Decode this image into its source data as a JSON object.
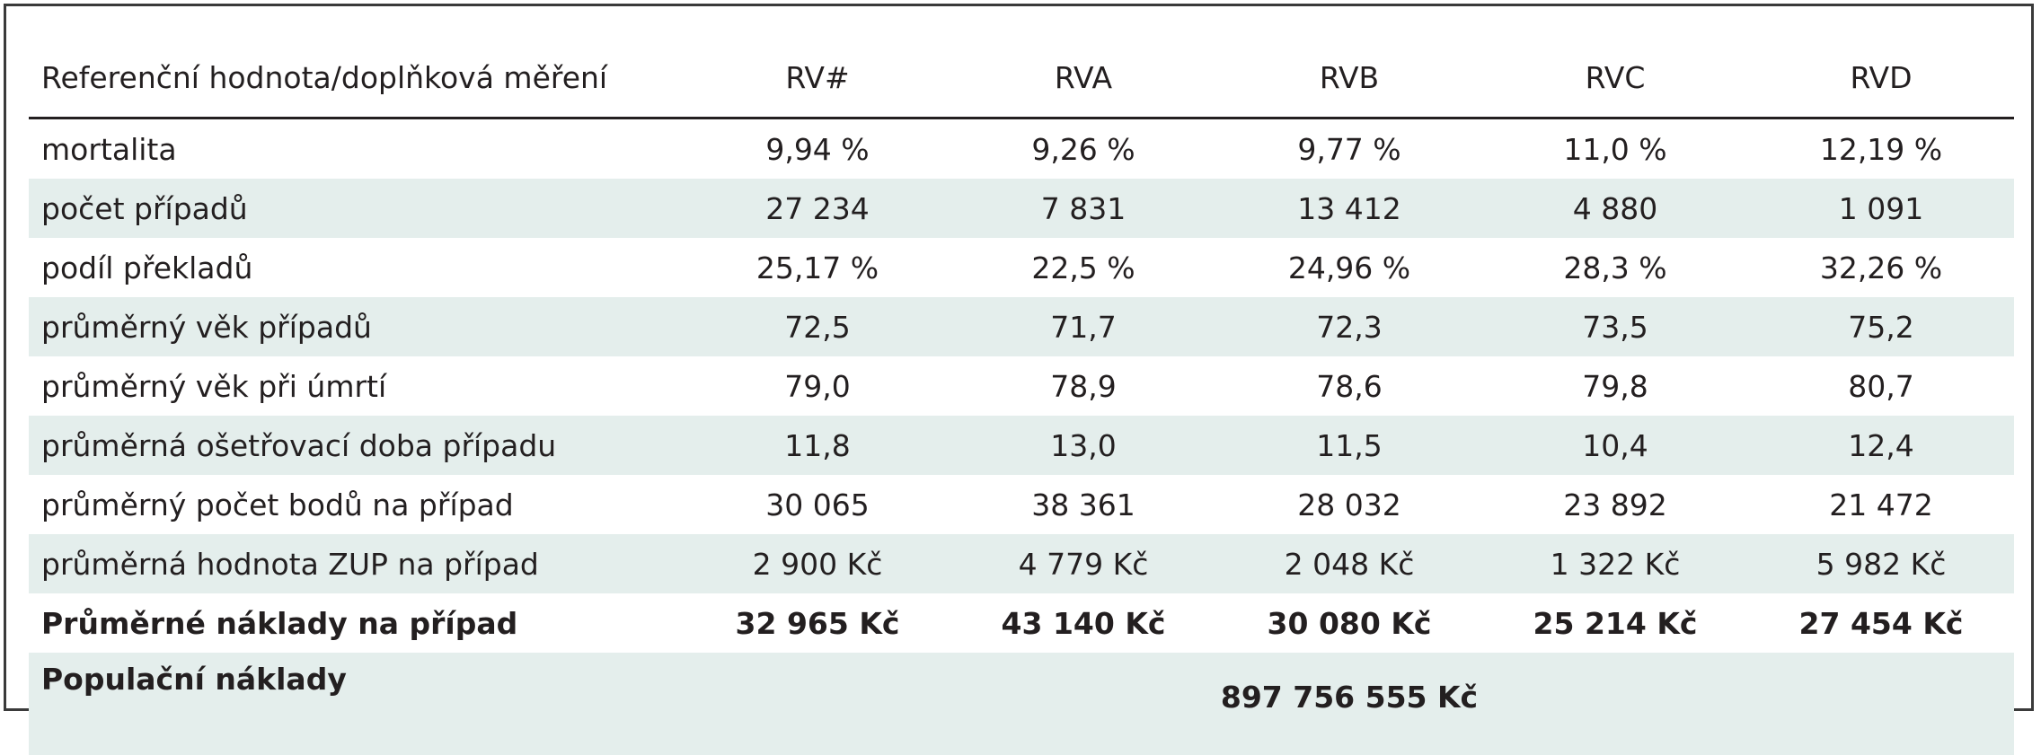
{
  "table": {
    "headers": [
      "Referenční hodnota/doplňková měření",
      "RV#",
      "RVA",
      "RVB",
      "RVC",
      "RVD"
    ],
    "rows": [
      {
        "label": "mortalita",
        "values": [
          "9,94 %",
          "9,26 %",
          "9,77 %",
          "11,0 %",
          "12,19 %"
        ]
      },
      {
        "label": "počet případů",
        "values": [
          "27 234",
          "7 831",
          "13 412",
          "4 880",
          "1 091"
        ]
      },
      {
        "label": "podíl překladů",
        "values": [
          "25,17 %",
          "22,5 %",
          "24,96 %",
          "28,3 %",
          "32,26 %"
        ]
      },
      {
        "label": "průměrný věk případů",
        "values": [
          "72,5",
          "71,7",
          "72,3",
          "73,5",
          "75,2"
        ]
      },
      {
        "label": "průměrný věk při úmrtí",
        "values": [
          "79,0",
          "78,9",
          "78,6",
          "79,8",
          "80,7"
        ]
      },
      {
        "label": "průměrná ošetřovací doba případu",
        "values": [
          "11,8",
          "13,0",
          "11,5",
          "10,4",
          "12,4"
        ]
      },
      {
        "label": "průměrný počet bodů na případ",
        "values": [
          "30 065",
          "38 361",
          "28 032",
          "23 892",
          "21 472"
        ]
      },
      {
        "label": "průměrná hodnota ZUP na případ",
        "values": [
          "2 900 Kč",
          "4 779 Kč",
          "2 048 Kč",
          "1 322 Kč",
          "5 982 Kč"
        ]
      },
      {
        "label": "Průměrné náklady na případ",
        "values": [
          "32 965 Kč",
          "43 140 Kč",
          "30 080 Kč",
          "25 214 Kč",
          "27 454 Kč"
        ]
      }
    ],
    "population": {
      "label": "Populační náklady",
      "value": "897 756 555 Kč"
    }
  }
}
